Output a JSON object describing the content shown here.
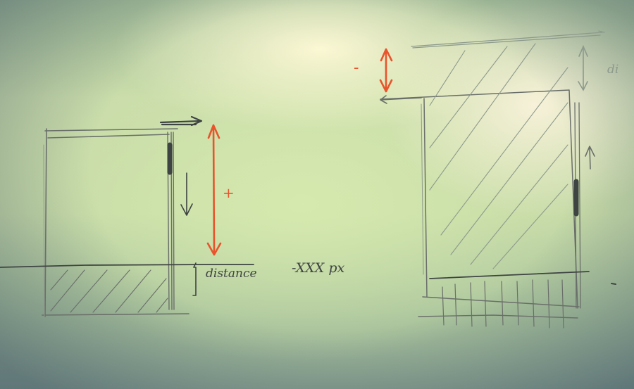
{
  "sketch": {
    "left_panel": {
      "distance_label": "distance",
      "pixel_label": "-XXX px",
      "plus_label": "+"
    },
    "right_panel": {
      "distance_label": "di",
      "minus_label": "-"
    }
  },
  "colors": {
    "pencil": "#6a6f6a",
    "pencil_dark": "#3e4442",
    "red_marker": "#e8542c"
  }
}
